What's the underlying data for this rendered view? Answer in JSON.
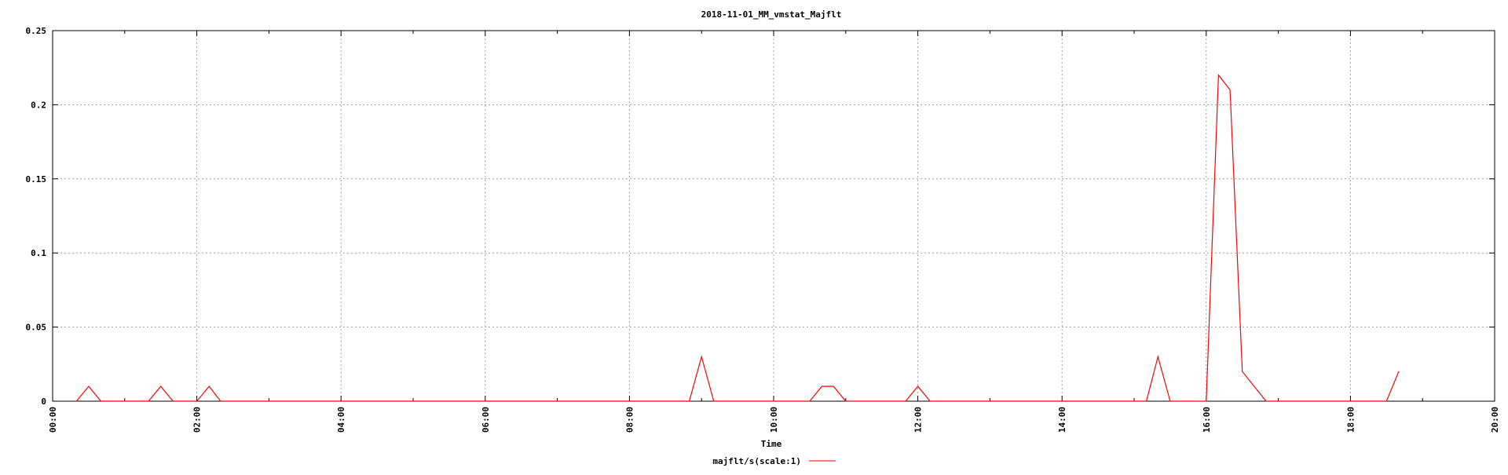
{
  "chart_data": {
    "type": "line",
    "title": "2018-11-01_MM_vmstat_Majflt",
    "xlabel": "Time",
    "ylabel": "",
    "x_unit": "hours",
    "xlim": [
      0,
      20
    ],
    "ylim": [
      0,
      0.25
    ],
    "x_ticks": [
      "00:00",
      "02:00",
      "04:00",
      "06:00",
      "08:00",
      "10:00",
      "12:00",
      "14:00",
      "16:00",
      "18:00",
      "20:00"
    ],
    "y_ticks": [
      "0",
      "0.05",
      "0.1",
      "0.15",
      "0.2",
      "0.25"
    ],
    "y_tick_values": [
      0,
      0.05,
      0.1,
      0.15,
      0.2,
      0.25
    ],
    "grid": true,
    "legend_position": "bottom-center",
    "series": [
      {
        "name": "majflt/s(scale:1)",
        "color": "#ff0000",
        "x": [
          0.33,
          0.5,
          0.67,
          1.33,
          1.5,
          1.67,
          2.0,
          2.17,
          2.33,
          8.83,
          9.0,
          9.17,
          10.5,
          10.67,
          10.83,
          11.0,
          11.83,
          12.0,
          12.17,
          15.17,
          15.33,
          15.5,
          16.0,
          16.17,
          16.33,
          16.5,
          16.83,
          18.5,
          18.67
        ],
        "values": [
          0,
          0.01,
          0,
          0,
          0.01,
          0,
          0,
          0.01,
          0,
          0,
          0.03,
          0,
          0,
          0.01,
          0.01,
          0,
          0,
          0.01,
          0,
          0,
          0.03,
          0,
          0,
          0.22,
          0.21,
          0.02,
          0,
          0,
          0.02
        ]
      }
    ]
  }
}
